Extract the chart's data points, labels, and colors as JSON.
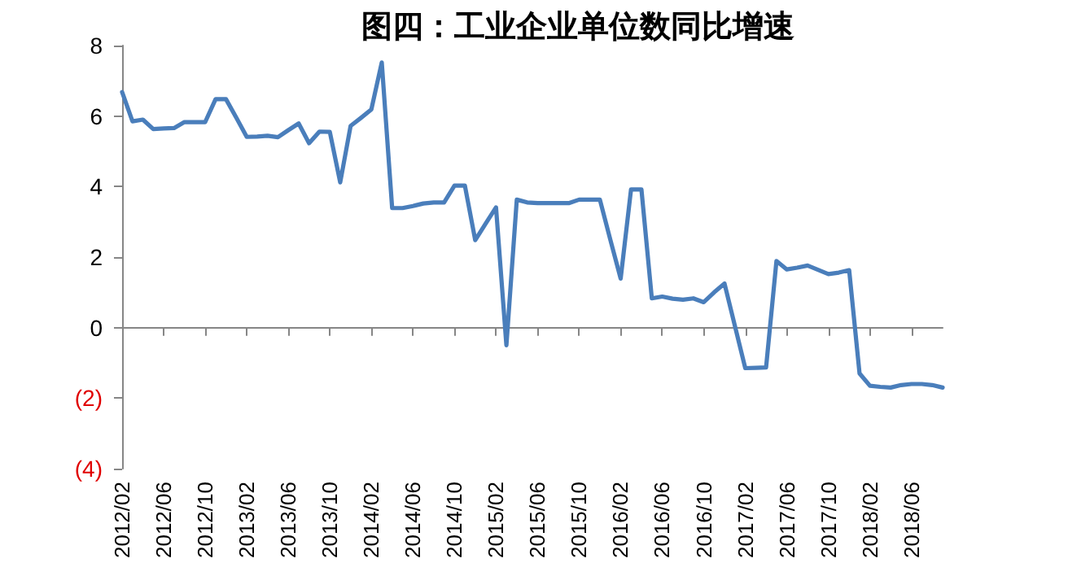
{
  "chart_data": {
    "type": "line",
    "title": "图四：工业企业单位数同比增速",
    "categories": [
      "2012/02",
      null,
      null,
      null,
      "2012/06",
      null,
      null,
      null,
      "2012/10",
      null,
      null,
      null,
      "2013/02",
      null,
      null,
      null,
      "2013/06",
      null,
      null,
      null,
      "2013/10",
      null,
      null,
      null,
      "2014/02",
      null,
      null,
      null,
      "2014/06",
      null,
      null,
      null,
      "2014/10",
      null,
      null,
      null,
      "2015/02",
      null,
      null,
      null,
      "2015/06",
      null,
      null,
      null,
      "2015/10",
      null,
      null,
      null,
      "2016/02",
      null,
      null,
      null,
      "2016/06",
      null,
      null,
      null,
      "2016/10",
      null,
      null,
      null,
      "2017/02",
      null,
      null,
      null,
      "2017/06",
      null,
      null,
      null,
      "2017/10",
      null,
      null,
      null,
      "2018/02",
      null,
      null,
      null,
      "2018/06",
      null,
      null,
      null
    ],
    "series": [
      {
        "color": "#4a7ebb",
        "values": [
          6.68,
          5.85,
          5.9,
          5.63,
          5.65,
          5.66,
          5.83,
          5.83,
          5.83,
          6.48,
          6.48,
          5.95,
          5.41,
          5.42,
          5.44,
          5.4,
          5.6,
          5.79,
          5.23,
          5.56,
          5.55,
          4.12,
          5.72,
          5.95,
          6.19,
          7.52,
          3.39,
          3.39,
          3.45,
          3.52,
          3.55,
          3.55,
          4.03,
          4.03,
          2.48,
          2.95,
          3.41,
          -0.5,
          3.63,
          3.55,
          3.53,
          3.53,
          3.53,
          3.53,
          3.63,
          3.63,
          3.63,
          2.5,
          1.39,
          3.92,
          3.92,
          0.83,
          0.88,
          0.82,
          0.79,
          0.83,
          0.72,
          1.0,
          1.25,
          0.05,
          -1.15,
          -1.14,
          -1.13,
          1.89,
          1.65,
          1.7,
          1.76,
          1.64,
          1.52,
          1.56,
          1.63,
          -1.3,
          -1.65,
          -1.68,
          -1.7,
          -1.63,
          -1.6,
          -1.6,
          -1.63,
          -1.7
        ]
      }
    ],
    "ylim": [
      -4,
      8
    ],
    "yticks": [
      {
        "value": -4,
        "label": "(4)"
      },
      {
        "value": -2,
        "label": "(2)"
      },
      0,
      2,
      4,
      6,
      8
    ],
    "marker": "none",
    "line_style": "solid"
  }
}
